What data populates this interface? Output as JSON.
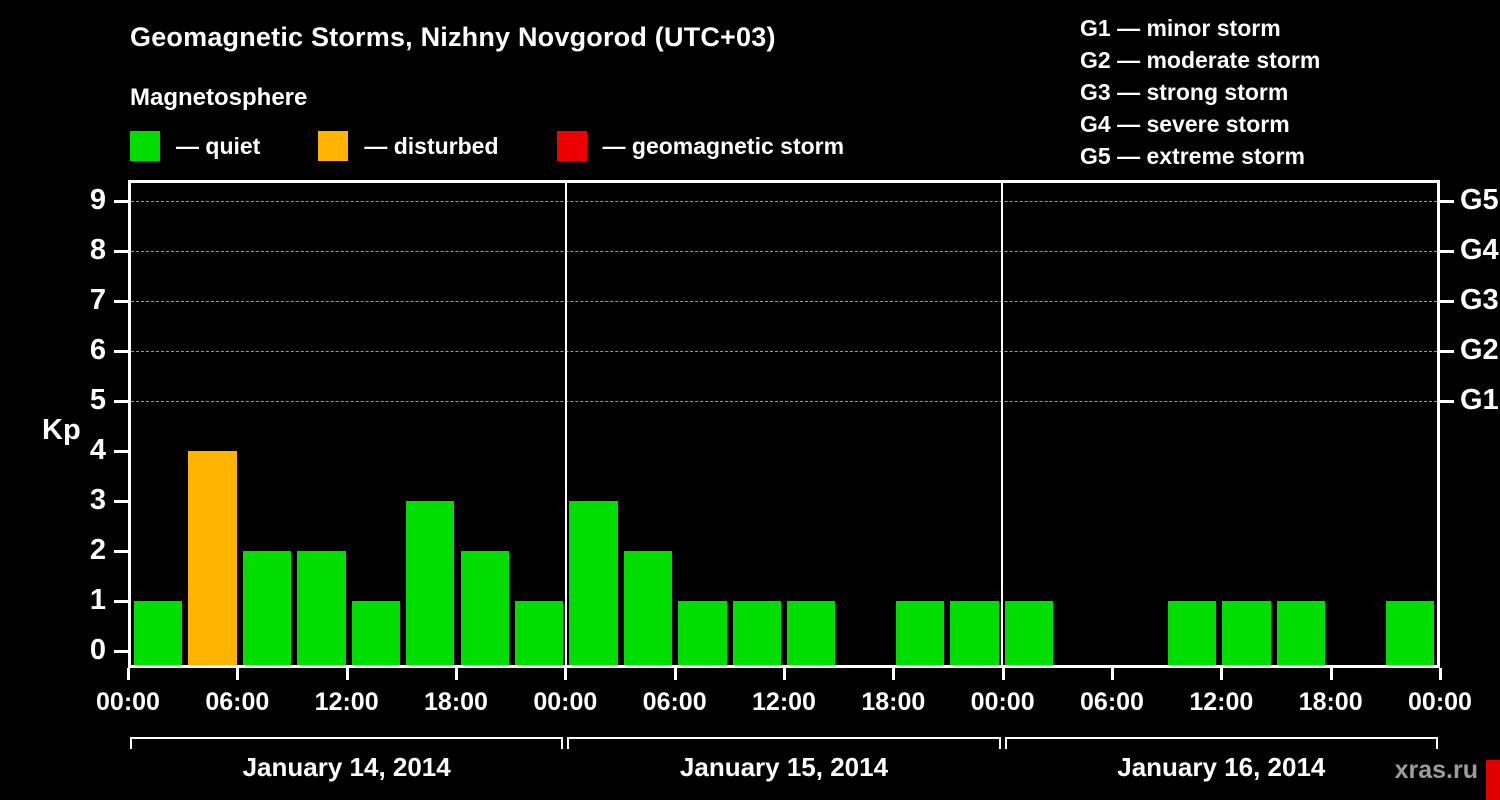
{
  "header": {
    "title": "Geomagnetic Storms, Nizhny Novgorod (UTC+03)",
    "subtitle": "Magnetosphere"
  },
  "legend": {
    "items": [
      {
        "name": "quiet",
        "label": "— quiet",
        "color": "#00dd00"
      },
      {
        "name": "disturbed",
        "label": "— disturbed",
        "color": "#ffb400"
      },
      {
        "name": "storm",
        "label": "— geomagnetic storm",
        "color": "#ee0000"
      }
    ]
  },
  "storm_scale_legend": {
    "items": [
      "G1 — minor storm",
      "G2 — moderate storm",
      "G3 — strong storm",
      "G4 — severe storm",
      "G5 — extreme storm"
    ]
  },
  "watermark": "xras.ru",
  "chart_data": {
    "type": "bar",
    "title": "Geomagnetic Storms, Nizhny Novgorod (UTC+03)",
    "ylabel": "Kp",
    "ylim": [
      0,
      9
    ],
    "y_ticks": [
      0,
      1,
      2,
      3,
      4,
      5,
      6,
      7,
      8,
      9
    ],
    "grid_values": [
      5,
      6,
      7,
      8,
      9
    ],
    "grid_on": true,
    "right_axis_labels": [
      {
        "value": 9,
        "label": "G5"
      },
      {
        "value": 8,
        "label": "G4"
      },
      {
        "value": 7,
        "label": "G3"
      },
      {
        "value": 6,
        "label": "G2"
      },
      {
        "value": 5,
        "label": "G1"
      }
    ],
    "x_tick_labels": [
      "00:00",
      "06:00",
      "12:00",
      "18:00",
      "00:00",
      "06:00",
      "12:00",
      "18:00",
      "00:00",
      "06:00",
      "12:00",
      "18:00",
      "00:00"
    ],
    "status_colors": {
      "quiet": "#00dd00",
      "disturbed": "#ffb400",
      "storm": "#ee0000"
    },
    "days": [
      {
        "date": "January 14, 2014",
        "values": [
          1,
          4,
          2,
          2,
          1,
          3,
          2,
          1
        ],
        "status": [
          "quiet",
          "disturbed",
          "quiet",
          "quiet",
          "quiet",
          "quiet",
          "quiet",
          "quiet"
        ]
      },
      {
        "date": "January 15, 2014",
        "values": [
          3,
          2,
          1,
          1,
          1,
          0,
          1,
          1
        ],
        "status": [
          "quiet",
          "quiet",
          "quiet",
          "quiet",
          "quiet",
          "quiet",
          "quiet",
          "quiet"
        ]
      },
      {
        "date": "January 16, 2014",
        "values": [
          1,
          0,
          0,
          1,
          1,
          1,
          0,
          1
        ],
        "status": [
          "quiet",
          "quiet",
          "quiet",
          "quiet",
          "quiet",
          "quiet",
          "quiet",
          "quiet"
        ]
      }
    ]
  }
}
